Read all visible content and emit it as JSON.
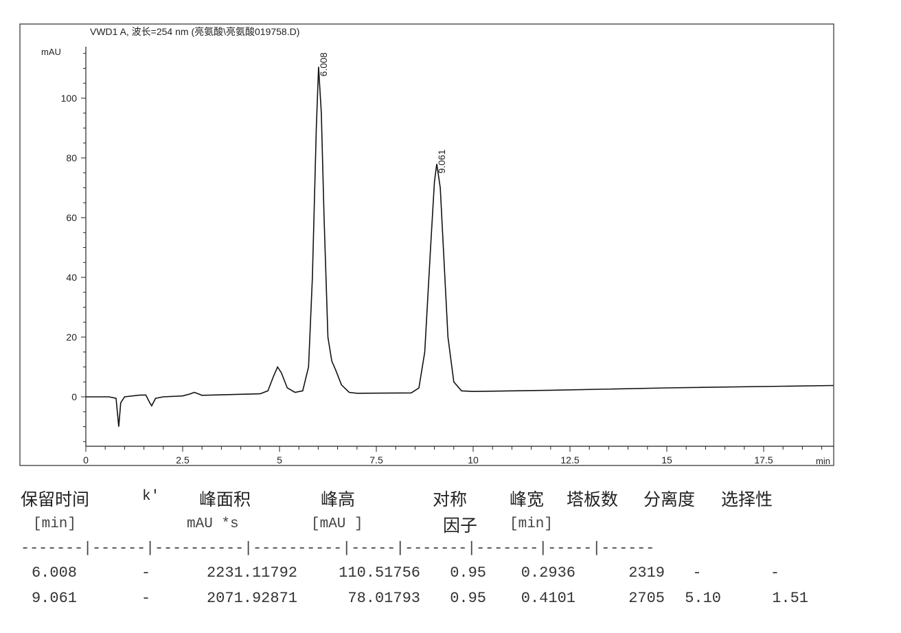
{
  "chart_data": {
    "type": "line",
    "title": "VWD1 A, 波长=254 nm (亮氨酸\\亮氨酸019758.D)",
    "ylabel": "mAU",
    "xlabel": "min",
    "xlim": [
      0,
      19.3
    ],
    "ylim": [
      -16.5,
      117
    ],
    "xticks": [
      0,
      2.5,
      5,
      7.5,
      10,
      12.5,
      15,
      17.5
    ],
    "xtick_labels": [
      "0",
      "2.5",
      "5",
      "7.5",
      "10",
      "12.5",
      "15",
      "17.5"
    ],
    "yticks": [
      0,
      20,
      40,
      60,
      80,
      100
    ],
    "ytick_labels": [
      "0",
      "20",
      "40",
      "60",
      "80",
      "100"
    ],
    "grid": false,
    "series": [
      {
        "x": [
          0,
          0.6,
          0.78,
          0.85,
          0.9,
          1.0,
          1.4,
          1.55,
          1.65,
          1.7,
          1.8,
          2.0,
          2.5,
          2.7,
          2.8,
          2.9,
          3.0,
          4.5,
          4.7,
          4.85,
          4.95,
          5.05,
          5.2,
          5.4,
          5.6,
          5.75,
          5.85,
          5.95,
          6.008,
          6.08,
          6.15,
          6.25,
          6.35,
          6.45,
          6.6,
          6.8,
          7.0,
          8.4,
          8.6,
          8.75,
          8.9,
          9.0,
          9.061,
          9.15,
          9.25,
          9.35,
          9.5,
          9.7,
          10,
          12,
          15,
          19.3
        ],
        "y": [
          0,
          0,
          -0.5,
          -10,
          -2,
          0,
          0.6,
          0.6,
          -2,
          -3,
          -0.5,
          0,
          0.3,
          1,
          1.5,
          1,
          0.5,
          1,
          2,
          7,
          10,
          8,
          3,
          1.5,
          2,
          10,
          40,
          90,
          110.5,
          95,
          60,
          20,
          12,
          9,
          4,
          1.5,
          1.2,
          1.3,
          3,
          15,
          50,
          72,
          78,
          70,
          45,
          20,
          5,
          2,
          1.8,
          2.2,
          3,
          3.8
        ]
      }
    ],
    "peak_labels": [
      {
        "x": 6.008,
        "y": 110.5,
        "text": "6.008"
      },
      {
        "x": 9.061,
        "y": 78,
        "text": "9.061"
      }
    ]
  },
  "table": {
    "headers": [
      "保留时间",
      "k'",
      "峰面积",
      "峰高",
      "对称",
      "峰宽",
      "塔板数",
      "分离度",
      "选择性"
    ],
    "header2": [
      "因子"
    ],
    "units": [
      "[min]",
      "mAU   *s",
      "[mAU    ]",
      "[min]"
    ],
    "separator": "-------|------|----------|----------|-----|-------|-------|-----|------",
    "rows": [
      [
        "6.008",
        "-",
        "2231.11792",
        "110.51756",
        "0.95",
        "0.2936",
        "2319",
        "-",
        "-"
      ],
      [
        "9.061",
        "-",
        "2071.92871",
        "78.01793",
        "0.95",
        "0.4101",
        "2705",
        "5.10",
        "1.51"
      ]
    ]
  }
}
